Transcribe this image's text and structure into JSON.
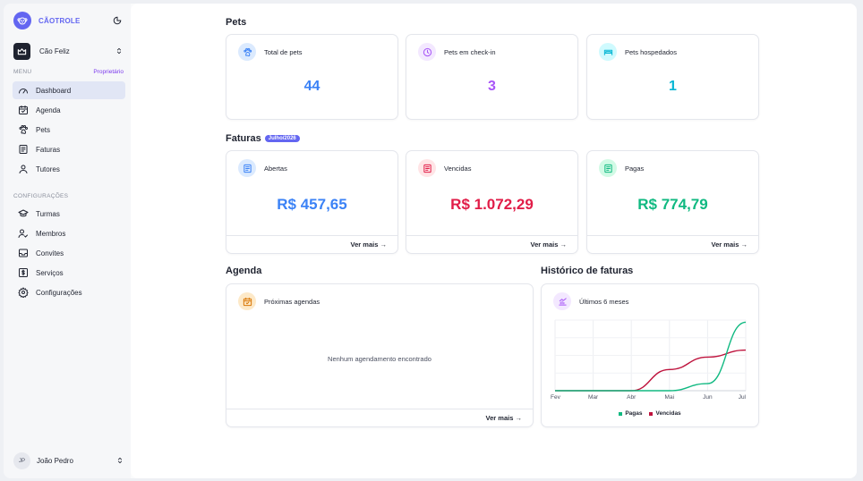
{
  "brand": {
    "name": "CÃOTROLE"
  },
  "organization": {
    "name": "Cão Feliz"
  },
  "menu": {
    "label": "MENU",
    "role": "Proprietário",
    "items": [
      {
        "label": "Dashboard",
        "icon": "gauge-icon",
        "active": true
      },
      {
        "label": "Agenda",
        "icon": "calendar-icon"
      },
      {
        "label": "Pets",
        "icon": "paw-icon"
      },
      {
        "label": "Faturas",
        "icon": "invoice-icon"
      },
      {
        "label": "Tutores",
        "icon": "user-icon"
      }
    ]
  },
  "settings": {
    "label": "CONFIGURAÇÕES",
    "items": [
      {
        "label": "Turmas",
        "icon": "graduation-cap-icon"
      },
      {
        "label": "Membros",
        "icon": "user-check-icon"
      },
      {
        "label": "Convites",
        "icon": "inbox-icon"
      },
      {
        "label": "Serviços",
        "icon": "dollar-square-icon"
      },
      {
        "label": "Configurações",
        "icon": "gear-icon"
      }
    ]
  },
  "user": {
    "initials": "JP",
    "name": "João Pedro"
  },
  "pets": {
    "title": "Pets",
    "cards": [
      {
        "title": "Total de pets",
        "value": "44",
        "color": "#3b82f6",
        "icon": "paw-icon"
      },
      {
        "title": "Pets em check-in",
        "value": "3",
        "color": "#a855f7",
        "icon": "clock-icon"
      },
      {
        "title": "Pets hospedados",
        "value": "1",
        "color": "#06b6d4",
        "icon": "bed-icon"
      }
    ]
  },
  "invoices": {
    "title": "Faturas",
    "period": "Julho/2026",
    "more_label": "Ver mais →",
    "cards": [
      {
        "title": "Abertas",
        "value": "R$ 457,65",
        "color": "#3b82f6",
        "icon": "invoice-icon"
      },
      {
        "title": "Vencidas",
        "value": "R$ 1.072,29",
        "color": "#e11d48",
        "icon": "invoice-icon"
      },
      {
        "title": "Pagas",
        "value": "R$ 774,79",
        "color": "#10b981",
        "icon": "invoice-icon"
      }
    ]
  },
  "agenda": {
    "title": "Agenda",
    "card_title": "Próximas agendas",
    "empty": "Nenhum agendamento encontrado",
    "more_label": "Ver mais →"
  },
  "history": {
    "title": "Histórico de faturas",
    "card_title": "Últimos 6 meses"
  },
  "chart_data": {
    "type": "line",
    "categories": [
      "Fev",
      "Mar",
      "Abr",
      "Mai",
      "Jun",
      "Jul"
    ],
    "series": [
      {
        "name": "Pagas",
        "color": "#10b981",
        "values": [
          0,
          0,
          0,
          0,
          80,
          775
        ]
      },
      {
        "name": "Vencidas",
        "color": "#be123c",
        "values": [
          0,
          0,
          0,
          240,
          380,
          460
        ]
      }
    ],
    "ylim": [
      0,
      800
    ],
    "grid": true,
    "legend": "bottom"
  }
}
